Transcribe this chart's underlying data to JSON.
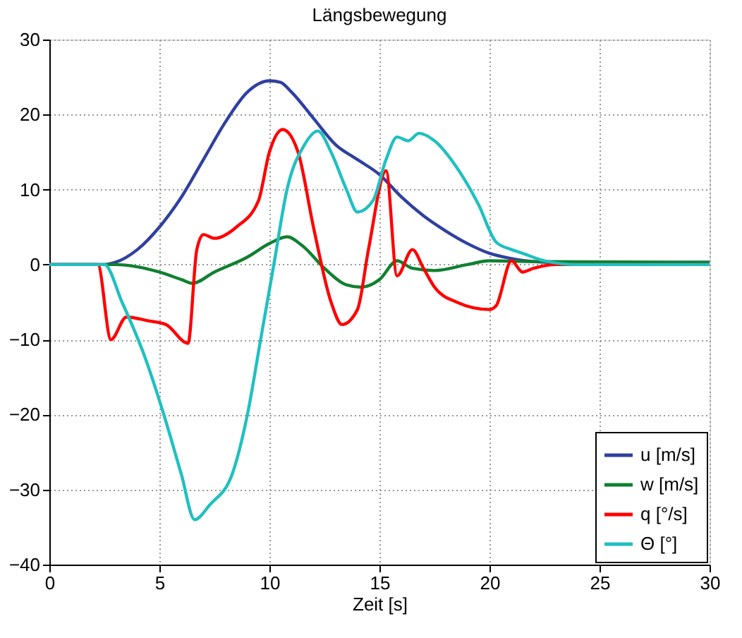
{
  "chart_data": {
    "type": "line",
    "title": "Längsbewegung",
    "xlabel": "Zeit [s]",
    "xlim": [
      0,
      30
    ],
    "xticks": [
      0,
      5,
      10,
      15,
      20,
      25,
      30
    ],
    "ylim": [
      -40,
      30
    ],
    "yticks": [
      -40,
      -30,
      -20,
      -10,
      0,
      10,
      20,
      30
    ],
    "grid": true,
    "legend": "bottom right",
    "line_style": "solid",
    "marker": "none",
    "series": [
      {
        "name": "u [m/s]",
        "color": "#3040a0",
        "x": [
          0,
          2.5,
          3,
          4,
          5,
          6,
          7,
          8,
          9,
          10,
          10.5,
          11,
          12,
          13,
          14,
          15,
          16,
          17,
          18,
          19,
          20,
          21,
          22,
          24,
          30
        ],
        "values": [
          0,
          0,
          0.3,
          2,
          5,
          9,
          14,
          19,
          23,
          24.5,
          24.3,
          23,
          19.5,
          16,
          14,
          12,
          9,
          6.5,
          4.5,
          2.8,
          1.5,
          0.8,
          0.4,
          0.2,
          0.3
        ]
      },
      {
        "name": "w [m/s]",
        "color": "#108030",
        "x": [
          0,
          3,
          4,
          5,
          6,
          6.5,
          7.5,
          9,
          10,
          10.8,
          11.5,
          12.5,
          13.5,
          14.2,
          15,
          15.8,
          16.5,
          17.5,
          19,
          20,
          22,
          30
        ],
        "values": [
          0,
          0,
          -0.3,
          -1,
          -2,
          -2.5,
          -1,
          1,
          2.8,
          3.7,
          2.5,
          -0.5,
          -2.7,
          -3,
          -2,
          0.5,
          -0.5,
          -0.8,
          0,
          0.5,
          0.4,
          0.3
        ]
      },
      {
        "name": "q [°/s]",
        "color": "#ff0000",
        "x": [
          0,
          2.2,
          2.8,
          3.5,
          4.5,
          5.3,
          6.3,
          6.7,
          7,
          7.5,
          8.5,
          9.5,
          10,
          10.6,
          11.3,
          12,
          12.8,
          13.3,
          14,
          14.5,
          15.3,
          15.8,
          16.5,
          17,
          17.5,
          18.5,
          20,
          20.3,
          21,
          21.5,
          22,
          23,
          30
        ],
        "values": [
          0,
          0,
          -10,
          -7,
          -7.5,
          -8,
          -10.5,
          2,
          4,
          3.5,
          5,
          8.5,
          15,
          18,
          15,
          5,
          -5,
          -8,
          -6,
          2,
          12.5,
          -1.5,
          2,
          -0.5,
          -3,
          -5,
          -6,
          -5.5,
          0.5,
          -1,
          -0.5,
          0,
          0
        ]
      },
      {
        "name": "Θ [°]",
        "color": "#20c0c0",
        "x": [
          0,
          2.5,
          3.3,
          4.3,
          5.2,
          6,
          6.6,
          7.3,
          8.3,
          9,
          9.6,
          10.2,
          10.8,
          11.6,
          12.2,
          12.8,
          13.5,
          14,
          14.7,
          15.3,
          15.8,
          16.3,
          16.8,
          17.5,
          18.5,
          19.5,
          20.3,
          21,
          21.5,
          22.5,
          24,
          30
        ],
        "values": [
          0,
          0,
          -5,
          -12,
          -20,
          -28,
          -34,
          -32,
          -28,
          -20,
          -10,
          0,
          10,
          16,
          17.8,
          15,
          10,
          7,
          8.5,
          14,
          17,
          16.5,
          17.5,
          16.5,
          13,
          8,
          3,
          2,
          1.5,
          0.5,
          0,
          0
        ]
      }
    ]
  }
}
